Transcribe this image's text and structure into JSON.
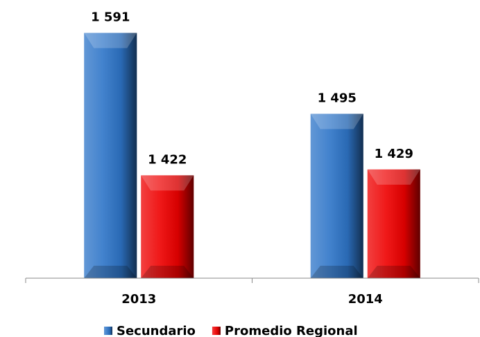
{
  "chart_data": {
    "type": "bar",
    "categories": [
      "2013",
      "2014"
    ],
    "series": [
      {
        "name": "Secundario",
        "color": "#2e75c8",
        "values": [
          1591,
          1495
        ],
        "value_labels": [
          "1 591",
          "1 495"
        ]
      },
      {
        "name": "Promedio Regional",
        "color": "#ee0000",
        "values": [
          1422,
          1429
        ],
        "value_labels": [
          "1 422",
          "1 429"
        ]
      }
    ],
    "ylim": [
      1300,
      1630
    ]
  }
}
